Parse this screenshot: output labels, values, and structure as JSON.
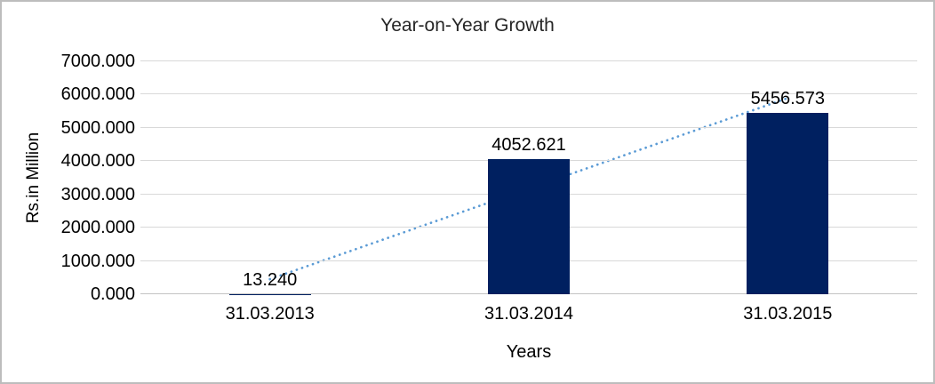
{
  "window": {
    "background_color": "#ffffff",
    "border_color": "#bdbdbd"
  },
  "chart_data": {
    "type": "bar",
    "title": "Year-on-Year Growth",
    "xlabel": "Years",
    "ylabel": "Rs.in Million",
    "categories": [
      "31.03.2013",
      "31.03.2014",
      "31.03.2015"
    ],
    "values": [
      13.24,
      4052.621,
      5456.573
    ],
    "data_labels": [
      "13.240",
      "4052.621",
      "5456.573"
    ],
    "ylim": [
      0,
      7000
    ],
    "ytick_step": 1000,
    "ytick_labels": [
      "0.000",
      "1000.000",
      "2000.000",
      "3000.000",
      "4000.000",
      "5000.000",
      "6000.000",
      "7000.000"
    ],
    "grid": true,
    "legend": "none",
    "bar_color": "#002060",
    "gridline_color": "#d9d9d9",
    "axis_line_color": "#c3c3c3",
    "title_color": "#262626",
    "text_color": "#000000",
    "trendline": {
      "type": "linear",
      "style": "dotted",
      "color": "#5b9bd5",
      "start_value": 452.5,
      "end_value": 5895.8
    }
  }
}
